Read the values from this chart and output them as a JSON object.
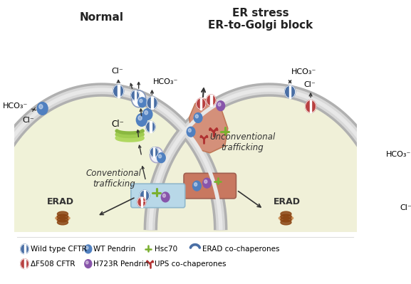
{
  "title_left": "Normal",
  "title_right": "ER stress\nER-to-Golgi block",
  "bg_color": "#ffffff",
  "cell_bg_left": "#f0f2d8",
  "cell_bg_right": "#f0f0d8",
  "membrane_outer": "#c8c8c8",
  "membrane_inner": "#e8e8e8",
  "ion_hco3": "HCO₃⁻",
  "ion_cl": "Cl⁻",
  "text_conventional": "Conventional\ntrafficking",
  "text_unconventional": "Unconventional\ntrafficking",
  "text_erad": "ERAD",
  "cftr_wt_color": "#4a6fa5",
  "cftr_mut_color": "#b84040",
  "pendrin_wt_color": "#5080c0",
  "pendrin_mut_color": "#8855aa",
  "golgi_colors": [
    "#8ab840",
    "#a0cc50",
    "#b0d860"
  ],
  "er_left_color": "#d0e8d0",
  "er_right_top_color": "#d4907a",
  "er_right_bot_color": "#c87860",
  "proteasome_color": "#8B4513",
  "hsc70_color": "#7ab030",
  "ups_color": "#b03030",
  "erad_co_color": "#4a6fa5",
  "arrow_color": "#333333"
}
